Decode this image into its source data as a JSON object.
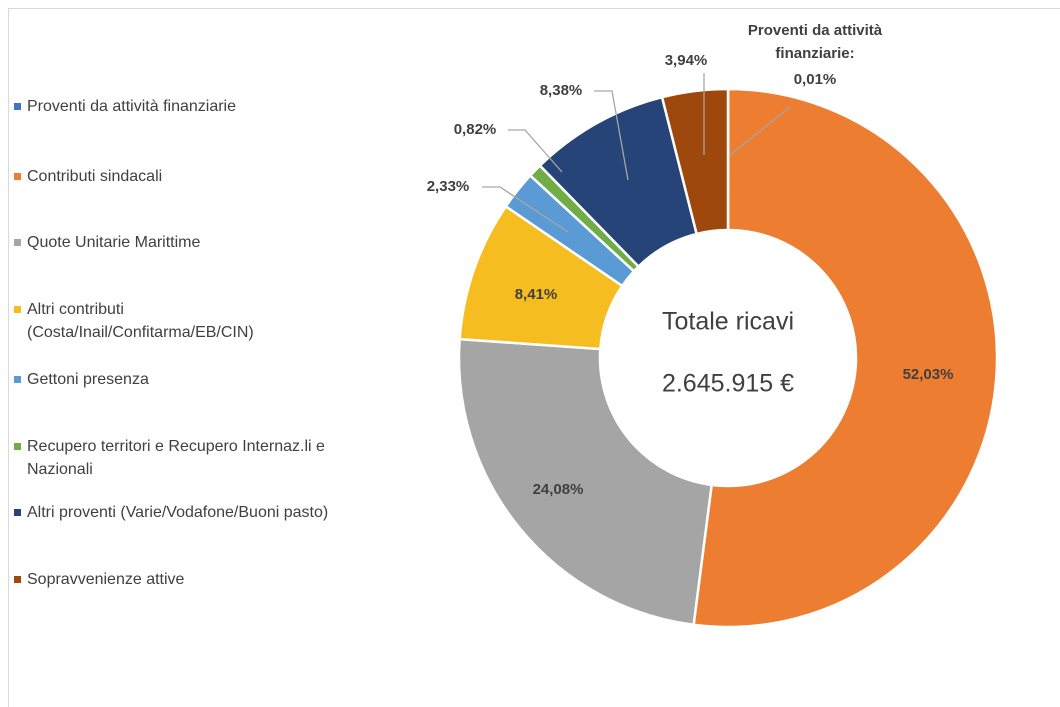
{
  "chart_data": {
    "type": "donut",
    "categories": [
      "Proventi da attività finanziarie",
      "Contributi sindacali",
      "Quote Unitarie Marittime",
      "Altri contributi (Costa/Inail/Confitarma/EB/CIN)",
      "Gettoni presenza",
      "Recupero territori e Recupero Internaz.li e Nazionali",
      "Altri proventi (Varie/Vodafone/Buoni pasto)",
      "Sopravvenienze attive"
    ],
    "values": [
      0.01,
      52.03,
      24.08,
      8.41,
      2.33,
      0.82,
      8.38,
      3.94
    ],
    "value_labels": [
      "0,01%",
      "52,03%",
      "24,08%",
      "8,41%",
      "2,33%",
      "0,82%",
      "8,38%",
      "3,94%"
    ],
    "colors": [
      "#4472c4",
      "#ed7d31",
      "#a5a5a5",
      "#f5bd1f",
      "#5b9bd5",
      "#70ad47",
      "#264478",
      "#9e480e"
    ],
    "annotation": [
      "Proventi da attività",
      "finanziarie:"
    ],
    "center_text": [
      "Totale ricavi",
      "2.645.915 €"
    ],
    "legend": "left"
  }
}
